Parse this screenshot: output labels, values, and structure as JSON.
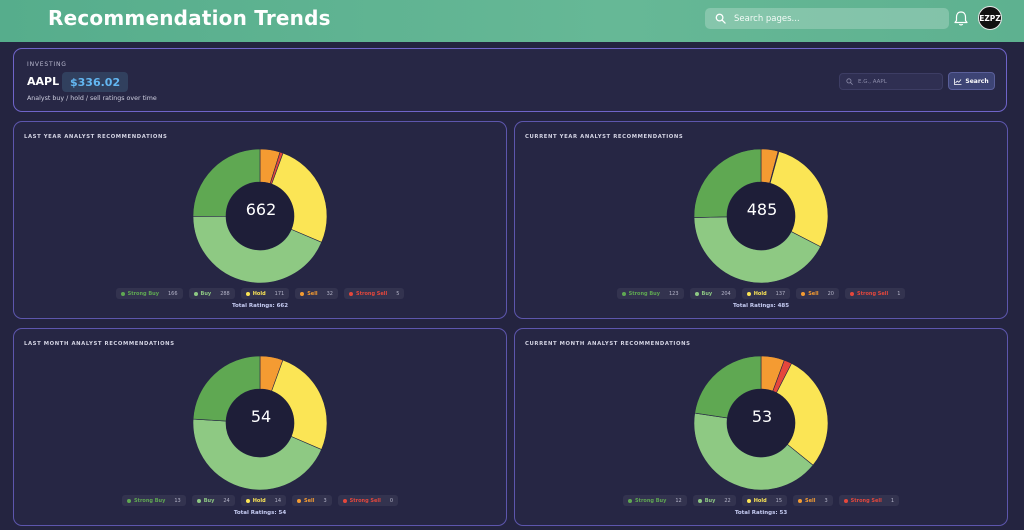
{
  "app": {
    "title": "Recommendation Trends",
    "search_placeholder": "Search pages...",
    "avatar_text": "EZPZ"
  },
  "header": {
    "section_label": "INVESTING",
    "ticker": "AAPL",
    "price": "$336.02",
    "subtitle": "Analyst buy / hold / sell ratings over time",
    "ticker_input_placeholder": "E.G., AAPL",
    "search_button_label": "Search"
  },
  "legend_labels": [
    "Strong Buy",
    "Buy",
    "Hold",
    "Sell",
    "Strong Sell"
  ],
  "colors": {
    "strong_buy": "#5fa852",
    "buy": "#8ec983",
    "hold": "#fbe555",
    "sell": "#f49b32",
    "strong_sell": "#e5473c",
    "accent": "#6f64c9",
    "topbar": "#5fb290"
  },
  "panels": [
    {
      "title": "LAST YEAR ANALYST RECOMMENDATIONS",
      "total_value": "662",
      "total_label": "Total Ratings: 662",
      "counts": [
        "166",
        "288",
        "171",
        "32",
        "5"
      ]
    },
    {
      "title": "CURRENT YEAR ANALYST RECOMMENDATIONS",
      "total_value": "485",
      "total_label": "Total Ratings: 485",
      "counts": [
        "123",
        "204",
        "137",
        "20",
        "1"
      ]
    },
    {
      "title": "LAST MONTH ANALYST RECOMMENDATIONS",
      "total_value": "54",
      "total_label": "Total Ratings: 54",
      "counts": [
        "13",
        "24",
        "14",
        "3",
        "0"
      ]
    },
    {
      "title": "CURRENT MONTH ANALYST RECOMMENDATIONS",
      "total_value": "53",
      "total_label": "Total Ratings: 53",
      "counts": [
        "12",
        "22",
        "15",
        "3",
        "1"
      ]
    }
  ],
  "chart_data": [
    {
      "type": "pie",
      "title": "LAST YEAR ANALYST RECOMMENDATIONS",
      "categories": [
        "Strong Buy",
        "Buy",
        "Hold",
        "Sell",
        "Strong Sell"
      ],
      "values": [
        166,
        288,
        171,
        32,
        5
      ]
    },
    {
      "type": "pie",
      "title": "CURRENT YEAR ANALYST RECOMMENDATIONS",
      "categories": [
        "Strong Buy",
        "Buy",
        "Hold",
        "Sell",
        "Strong Sell"
      ],
      "values": [
        123,
        204,
        137,
        20,
        1
      ]
    },
    {
      "type": "pie",
      "title": "LAST MONTH ANALYST RECOMMENDATIONS",
      "categories": [
        "Strong Buy",
        "Buy",
        "Hold",
        "Sell",
        "Strong Sell"
      ],
      "values": [
        13,
        24,
        14,
        3,
        0
      ]
    },
    {
      "type": "pie",
      "title": "CURRENT MONTH ANALYST RECOMMENDATIONS",
      "categories": [
        "Strong Buy",
        "Buy",
        "Hold",
        "Sell",
        "Strong Sell"
      ],
      "values": [
        12,
        22,
        15,
        3,
        1
      ]
    }
  ]
}
